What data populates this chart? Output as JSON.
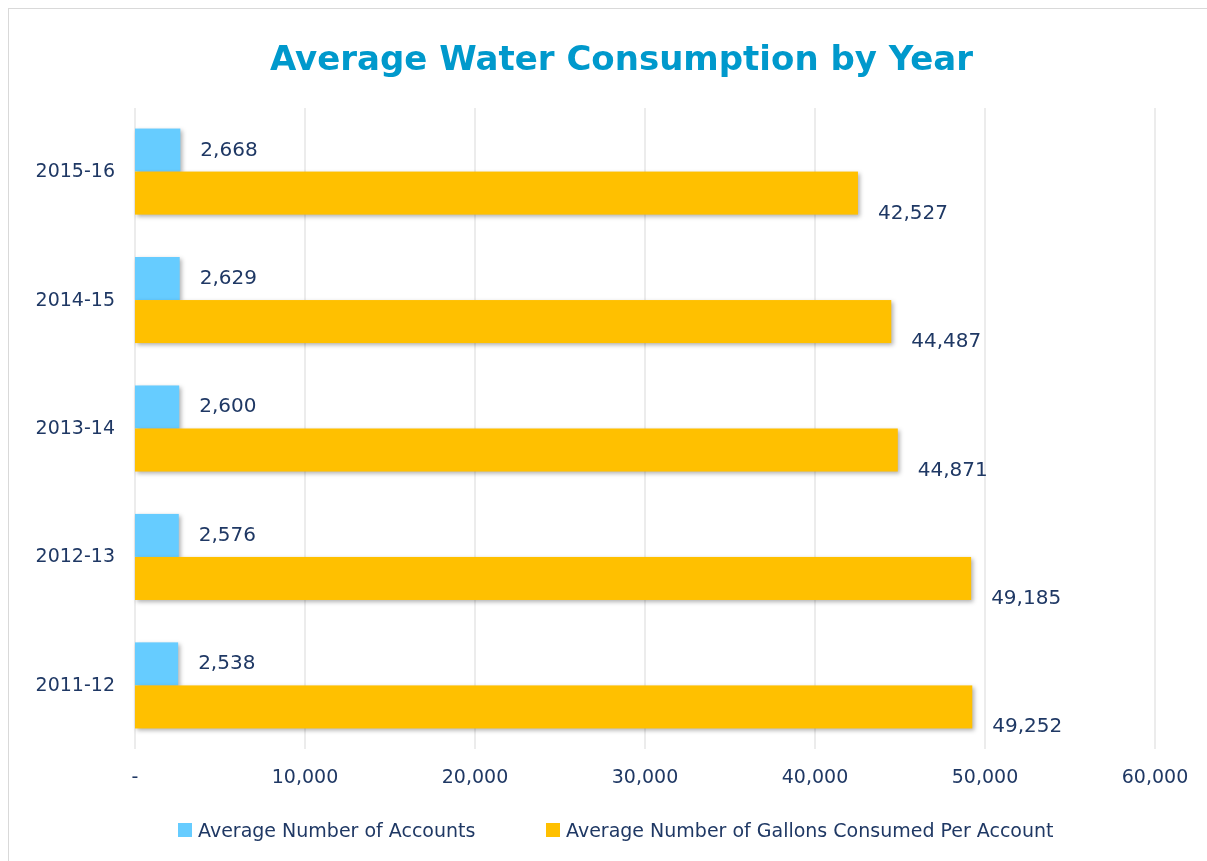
{
  "chart_data": {
    "type": "bar",
    "orientation": "horizontal",
    "title": "Average Water Consumption by Year",
    "categories": [
      "2015-16",
      "2014-15",
      "2013-14",
      "2012-13",
      "2011-12"
    ],
    "series": [
      {
        "name": "Average Number of Accounts",
        "color": "#66ccff",
        "values": [
          2668,
          2629,
          2600,
          2576,
          2538
        ],
        "value_labels": [
          "2,668",
          "2,629",
          "2,600",
          "2,576",
          "2,538"
        ]
      },
      {
        "name": "Average Number of Gallons Consumed Per Account",
        "color": "#ffc000",
        "values": [
          42527,
          44487,
          44871,
          49185,
          49252
        ],
        "value_labels": [
          "42,527",
          "44,487",
          "44,871",
          "49,185",
          "49,252"
        ]
      }
    ],
    "xlim": [
      0,
      60000
    ],
    "xticks": [
      {
        "value": 0,
        "label": "-"
      },
      {
        "value": 10000,
        "label": "10,000"
      },
      {
        "value": 20000,
        "label": "20,000"
      },
      {
        "value": 30000,
        "label": "30,000"
      },
      {
        "value": 40000,
        "label": "40,000"
      },
      {
        "value": 50000,
        "label": "50,000"
      },
      {
        "value": 60000,
        "label": "60,000"
      }
    ],
    "grid": "x",
    "legend": "bottom"
  }
}
